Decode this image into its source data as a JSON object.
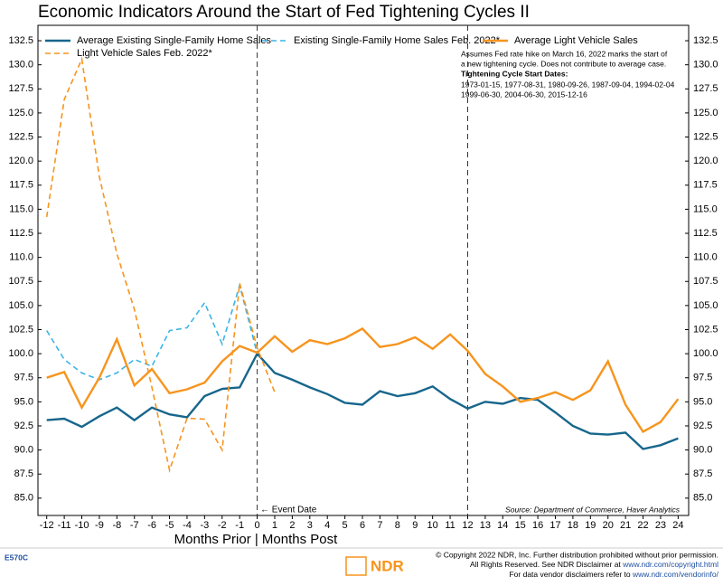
{
  "chart_data": {
    "type": "line",
    "title": "Economic Indicators Around the Start of Fed Tightening Cycles II",
    "x_label": "Months Prior | Months Post",
    "x": [
      -12,
      -11,
      -10,
      -9,
      -8,
      -7,
      -6,
      -5,
      -4,
      -3,
      -2,
      -1,
      0,
      1,
      2,
      3,
      4,
      5,
      6,
      7,
      8,
      9,
      10,
      11,
      12,
      13,
      14,
      15,
      16,
      17,
      18,
      19,
      20,
      21,
      22,
      23,
      24
    ],
    "series": [
      {
        "name": "Average Existing Single-Family Home Sales",
        "color": "#17668c",
        "dashed": false,
        "values": [
          93.1,
          93.25,
          92.4,
          93.5,
          94.4,
          93.1,
          94.4,
          93.7,
          93.4,
          95.6,
          96.35,
          96.5,
          100,
          98.0,
          97.3,
          96.5,
          95.8,
          94.9,
          94.7,
          96.1,
          95.6,
          95.9,
          96.6,
          95.3,
          94.3,
          95.0,
          94.8,
          95.4,
          95.2,
          93.9,
          92.5,
          91.7,
          91.6,
          91.8,
          90.1,
          90.5,
          91.2
        ]
      },
      {
        "name": "Existing Single-Family Home Sales Feb. 2022*",
        "color": "#3cb4e5",
        "dashed": true,
        "values": [
          102.4,
          99.4,
          98.0,
          97.3,
          98.0,
          99.4,
          98.7,
          102.4,
          102.7,
          105.3,
          101.0,
          107.1,
          100,
          null,
          null,
          null,
          null,
          null,
          null,
          null,
          null,
          null,
          null,
          null,
          null,
          null,
          null,
          null,
          null,
          null,
          null,
          null,
          null,
          null,
          null,
          null,
          null
        ]
      },
      {
        "name": "Average Light Vehicle Sales",
        "color": "#f7941d",
        "dashed": false,
        "values": [
          97.5,
          98.1,
          94.4,
          97.5,
          101.5,
          96.7,
          98.4,
          95.9,
          96.3,
          97.0,
          99.2,
          100.8,
          100.1,
          101.8,
          100.2,
          101.4,
          101.0,
          101.6,
          102.6,
          100.7,
          101.0,
          101.7,
          100.5,
          102.0,
          100.3,
          97.9,
          96.6,
          95.0,
          95.4,
          96.0,
          95.2,
          96.2,
          99.2,
          94.7,
          91.9,
          92.9,
          95.3
        ]
      },
      {
        "name": "Light Vehicle Sales Feb. 2022*",
        "color": "#f7941d",
        "dashed": true,
        "values": [
          114.2,
          126.4,
          130.6,
          118.4,
          110.4,
          104.6,
          96.5,
          87.9,
          93.3,
          93.2,
          90.0,
          107.3,
          100.6,
          96.0,
          null,
          null,
          null,
          null,
          null,
          null,
          null,
          null,
          null,
          null,
          null,
          null,
          null,
          null,
          null,
          null,
          null,
          null,
          null,
          null,
          null,
          null,
          null
        ]
      }
    ],
    "xlim": [
      -12.5,
      24.6
    ],
    "ylim": [
      83.2,
      134.1
    ],
    "xticks": [
      -12,
      -11,
      -10,
      -9,
      -8,
      -7,
      -6,
      -5,
      -4,
      -3,
      -2,
      -1,
      0,
      1,
      2,
      3,
      4,
      5,
      6,
      7,
      8,
      9,
      10,
      11,
      12,
      13,
      14,
      15,
      16,
      17,
      18,
      19,
      20,
      21,
      22,
      23,
      24
    ],
    "yticks": [
      {
        "value": 85,
        "label": "85.0"
      },
      87.5,
      {
        "value": 90,
        "label": "90.0"
      },
      92.5,
      {
        "value": 95,
        "label": "95.0"
      },
      97.5,
      {
        "value": 100,
        "label": "100.0"
      },
      102.5,
      {
        "value": 105,
        "label": "105.0"
      },
      107.5,
      {
        "value": 110,
        "label": "110.0"
      },
      112.5,
      {
        "value": 115,
        "label": "115.0"
      },
      117.5,
      {
        "value": 120,
        "label": "120.0"
      },
      122.5,
      {
        "value": 125,
        "label": "125.0"
      },
      127.5,
      {
        "value": 130,
        "label": "130.0"
      },
      132.5
    ],
    "vlines": [
      0,
      12
    ],
    "annotations": {
      "event": "← Event Date",
      "note": [
        "Assumes Fed rate hike on March 16, 2022 marks the start of",
        "a new tightening cycle. Does not contribute to average case."
      ],
      "dates_title": "Tightening Cycle Start Dates:",
      "dates": [
        "1973-01-15, 1977-08-31, 1980-09-26, 1987-09-04, 1994-02-04",
        "1999-06-30, 2004-06-30, 2015-12-16"
      ],
      "source": "Source:  Department of Commerce, Haver Analytics"
    }
  },
  "footer": {
    "code": "E570C",
    "logo": "NDR",
    "line1": "© Copyright 2022 NDR, Inc. Further distribution prohibited without prior permission.",
    "line2": "All Rights Reserved. See NDR Disclaimer at",
    "link1": "www.ndr.com/copyright.html",
    "line3": "For data vendor disclaimers refer to",
    "link2": "www.ndr.com/vendorinfo/"
  }
}
